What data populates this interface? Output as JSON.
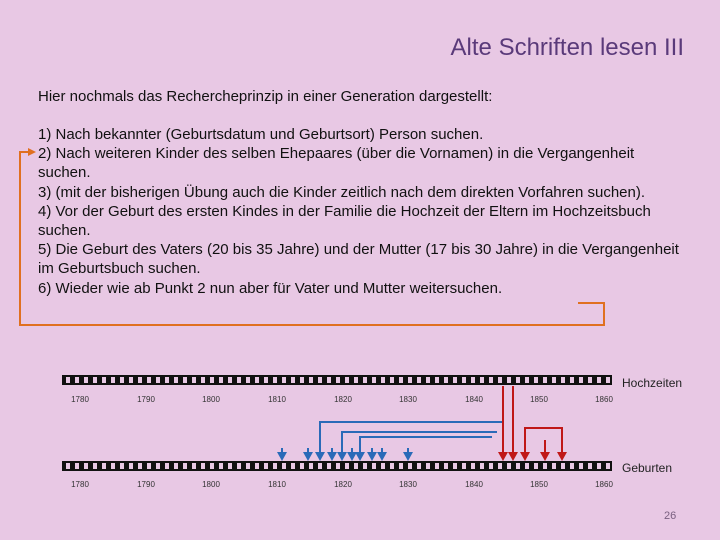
{
  "slide": {
    "title": "Alte Schriften lesen III",
    "intro": "Hier nochmals das Rechercheprinzip in einer Generation dargestellt:",
    "steps": [
      "1) Nach bekannter (Geburtsdatum und Geburtsort) Person suchen.",
      "2) Nach weiteren Kinder des selben Ehepaares  (über die Vornamen) in die Vergangenheit suchen.",
      "3) (mit der bisherigen Übung auch die Kinder zeitlich nach dem direkten Vorfahren suchen).",
      "4) Vor der Geburt des ersten Kindes in der Familie die Hochzeit der Eltern im Hochzeitsbuch suchen.",
      "5) Die Geburt  des Vaters (20 bis 35 Jahre) und der Mutter (17 bis 30 Jahre) in die Vergangenheit im Geburtsbuch suchen.",
      "6) Wieder wie ab Punkt 2 nun aber  für Vater und Mutter weitersuchen."
    ],
    "timeline_hochzeiten_label": "Hochzeiten",
    "timeline_geburten_label": "Geburten",
    "tick_labels": [
      "1780",
      "1790",
      "1800",
      "1810",
      "1820",
      "1830",
      "1840",
      "1850",
      "1860"
    ],
    "page_number": "26",
    "colors": {
      "background": "#e8c8e4",
      "title": "#5a3a7a",
      "orange_bracket": "#e07020",
      "blue_arrows": "#2a6ab8",
      "red_arrows": "#c01818"
    }
  }
}
